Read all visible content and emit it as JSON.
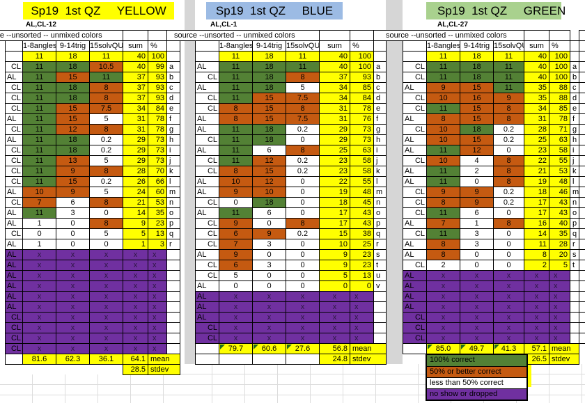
{
  "source_header": "source --unsorted -- unmixed colors",
  "columns": [
    "1-8angles",
    "9-14trig",
    "15solvQU",
    "sum",
    "%"
  ],
  "max_row": [
    "11",
    "18",
    "11",
    "40",
    "100"
  ],
  "labels": {
    "mean": "mean",
    "stdev": "stdev",
    "x": "x"
  },
  "colors": {
    "correct_green": "#538135",
    "partial_orange": "#C55A11",
    "none_white": "#FFFFFF",
    "noshow_purple": "#7030A0",
    "score_yellow": "#FFFF00",
    "title_yellow": "#FFFF00",
    "title_blue": "#9CBBE4",
    "title_green": "#A9D18E"
  },
  "blocks": [
    {
      "title": "Sp19  1st QZ     YELLOW",
      "sub": "AL,CL-12",
      "title_bg": "#FFFF00",
      "rows": [
        {
          "label": "CL",
          "s": [
            "11",
            "18",
            "10.5"
          ],
          "c": [
            "g",
            "g",
            "o"
          ],
          "sum": "40",
          "pct": "99",
          "letter": "a"
        },
        {
          "label": "AL",
          "s": [
            "11",
            "15",
            "11"
          ],
          "c": [
            "g",
            "o",
            "g"
          ],
          "sum": "37",
          "pct": "93",
          "letter": "b"
        },
        {
          "label": "CL",
          "s": [
            "11",
            "18",
            "8"
          ],
          "c": [
            "g",
            "g",
            "o"
          ],
          "sum": "37",
          "pct": "93",
          "letter": "c"
        },
        {
          "label": "CL",
          "s": [
            "11",
            "18",
            "8"
          ],
          "c": [
            "g",
            "g",
            "o"
          ],
          "sum": "37",
          "pct": "93",
          "letter": "d"
        },
        {
          "label": "CL",
          "s": [
            "11",
            "15",
            "7.5"
          ],
          "c": [
            "g",
            "o",
            "o"
          ],
          "sum": "34",
          "pct": "84",
          "letter": "e"
        },
        {
          "label": "AL",
          "s": [
            "11",
            "15",
            "5"
          ],
          "c": [
            "g",
            "o",
            "w"
          ],
          "sum": "31",
          "pct": "78",
          "letter": "f"
        },
        {
          "label": "CL",
          "s": [
            "11",
            "12",
            "8"
          ],
          "c": [
            "g",
            "o",
            "o"
          ],
          "sum": "31",
          "pct": "78",
          "letter": "g"
        },
        {
          "label": "AL",
          "s": [
            "11",
            "18",
            "0.2"
          ],
          "c": [
            "g",
            "g",
            "w"
          ],
          "sum": "29",
          "pct": "73",
          "letter": "h"
        },
        {
          "label": "CL",
          "s": [
            "11",
            "18",
            "0.2"
          ],
          "c": [
            "g",
            "g",
            "w"
          ],
          "sum": "29",
          "pct": "73",
          "letter": "i"
        },
        {
          "label": "CL",
          "s": [
            "11",
            "13",
            "5"
          ],
          "c": [
            "g",
            "o",
            "w"
          ],
          "sum": "29",
          "pct": "73",
          "letter": "j"
        },
        {
          "label": "CL",
          "s": [
            "11",
            "9",
            "8"
          ],
          "c": [
            "g",
            "o",
            "o"
          ],
          "sum": "28",
          "pct": "70",
          "letter": "k"
        },
        {
          "label": "CL",
          "s": [
            "11",
            "15",
            "0.2"
          ],
          "c": [
            "g",
            "o",
            "w"
          ],
          "sum": "26",
          "pct": "66",
          "letter": "l"
        },
        {
          "label": "AL",
          "s": [
            "10",
            "9",
            "5"
          ],
          "c": [
            "o",
            "o",
            "w"
          ],
          "sum": "24",
          "pct": "60",
          "letter": "m"
        },
        {
          "label": "CL",
          "s": [
            "7",
            "6",
            "8"
          ],
          "c": [
            "o",
            "w",
            "o"
          ],
          "sum": "21",
          "pct": "53",
          "letter": "n"
        },
        {
          "label": "AL",
          "s": [
            "11",
            "3",
            "0"
          ],
          "c": [
            "g",
            "w",
            "w"
          ],
          "sum": "14",
          "pct": "35",
          "letter": "o"
        },
        {
          "label": "AL",
          "s": [
            "1",
            "0",
            "8"
          ],
          "c": [
            "w",
            "w",
            "o"
          ],
          "sum": "9",
          "pct": "23",
          "letter": "p"
        },
        {
          "label": "CL",
          "s": [
            "0",
            "0",
            "5"
          ],
          "c": [
            "w",
            "w",
            "w"
          ],
          "sum": "5",
          "pct": "13",
          "letter": "q"
        },
        {
          "label": "AL",
          "s": [
            "1",
            "0",
            "0"
          ],
          "c": [
            "w",
            "w",
            "w"
          ],
          "sum": "1",
          "pct": "3",
          "letter": "r"
        }
      ],
      "noshow_rows": [
        "AL",
        "AL",
        "AL",
        "AL",
        "AL",
        "AL",
        "CL",
        "CL",
        "CL",
        "CL"
      ],
      "mean": [
        "81.6",
        "62.3",
        "36.1",
        "64.1"
      ],
      "stdev": "28.5",
      "mean_flags": false
    },
    {
      "title": "Sp19  1st QZ     BLUE",
      "sub": "AL,CL-1",
      "title_bg": "#9CBBE4",
      "rows": [
        {
          "label": "AL",
          "s": [
            "11",
            "18",
            "11"
          ],
          "c": [
            "g",
            "g",
            "g"
          ],
          "sum": "40",
          "pct": "100",
          "letter": "a"
        },
        {
          "label": "CL",
          "s": [
            "11",
            "18",
            "8"
          ],
          "c": [
            "g",
            "g",
            "o"
          ],
          "sum": "37",
          "pct": "93",
          "letter": "b"
        },
        {
          "label": "AL",
          "s": [
            "11",
            "18",
            "5"
          ],
          "c": [
            "g",
            "g",
            "w"
          ],
          "sum": "34",
          "pct": "85",
          "letter": "c"
        },
        {
          "label": "CL",
          "s": [
            "11",
            "15",
            "7.5"
          ],
          "c": [
            "g",
            "o",
            "o"
          ],
          "sum": "34",
          "pct": "84",
          "letter": "d"
        },
        {
          "label": "CL",
          "s": [
            "8",
            "15",
            "8"
          ],
          "c": [
            "o",
            "o",
            "o"
          ],
          "sum": "31",
          "pct": "78",
          "letter": "e"
        },
        {
          "label": "AL",
          "s": [
            "8",
            "15",
            "7.5"
          ],
          "c": [
            "o",
            "o",
            "o"
          ],
          "sum": "31",
          "pct": "76",
          "letter": "f"
        },
        {
          "label": "AL",
          "s": [
            "11",
            "18",
            "0.2"
          ],
          "c": [
            "g",
            "g",
            "w"
          ],
          "sum": "29",
          "pct": "73",
          "letter": "g"
        },
        {
          "label": "CL",
          "s": [
            "11",
            "18",
            "0"
          ],
          "c": [
            "g",
            "g",
            "w"
          ],
          "sum": "29",
          "pct": "73",
          "letter": "h"
        },
        {
          "label": "AL",
          "s": [
            "11",
            "6",
            "8"
          ],
          "c": [
            "g",
            "w",
            "o"
          ],
          "sum": "25",
          "pct": "63",
          "letter": "i"
        },
        {
          "label": "CL",
          "s": [
            "11",
            "12",
            "0.2"
          ],
          "c": [
            "g",
            "o",
            "w"
          ],
          "sum": "23",
          "pct": "58",
          "letter": "j"
        },
        {
          "label": "CL",
          "s": [
            "8",
            "15",
            "0.2"
          ],
          "c": [
            "o",
            "o",
            "w"
          ],
          "sum": "23",
          "pct": "58",
          "letter": "k"
        },
        {
          "label": "AL",
          "s": [
            "10",
            "12",
            "0"
          ],
          "c": [
            "o",
            "o",
            "w"
          ],
          "sum": "22",
          "pct": "55",
          "letter": "l"
        },
        {
          "label": "AL",
          "s": [
            "9",
            "10",
            "0"
          ],
          "c": [
            "o",
            "o",
            "w"
          ],
          "sum": "19",
          "pct": "48",
          "letter": "m"
        },
        {
          "label": "CL",
          "s": [
            "0",
            "18",
            "0"
          ],
          "c": [
            "w",
            "g",
            "w"
          ],
          "sum": "18",
          "pct": "45",
          "letter": "n"
        },
        {
          "label": "AL",
          "s": [
            "11",
            "6",
            "0"
          ],
          "c": [
            "g",
            "w",
            "w"
          ],
          "sum": "17",
          "pct": "43",
          "letter": "o"
        },
        {
          "label": "CL",
          "s": [
            "9",
            "0",
            "8"
          ],
          "c": [
            "o",
            "w",
            "o"
          ],
          "sum": "17",
          "pct": "43",
          "letter": "p"
        },
        {
          "label": "CL",
          "s": [
            "6",
            "9",
            "0.2"
          ],
          "c": [
            "o",
            "o",
            "w"
          ],
          "sum": "15",
          "pct": "38",
          "letter": "q"
        },
        {
          "label": "CL",
          "s": [
            "7",
            "3",
            "0"
          ],
          "c": [
            "o",
            "w",
            "w"
          ],
          "sum": "10",
          "pct": "25",
          "letter": "r"
        },
        {
          "label": "AL",
          "s": [
            "9",
            "0",
            "0"
          ],
          "c": [
            "o",
            "w",
            "w"
          ],
          "sum": "9",
          "pct": "23",
          "letter": "s"
        },
        {
          "label": "CL",
          "s": [
            "6",
            "3",
            "0"
          ],
          "c": [
            "o",
            "w",
            "w"
          ],
          "sum": "9",
          "pct": "23",
          "letter": "t"
        },
        {
          "label": "CL",
          "s": [
            "5",
            "0",
            "0"
          ],
          "c": [
            "w",
            "w",
            "w"
          ],
          "sum": "5",
          "pct": "13",
          "letter": "u"
        },
        {
          "label": "AL",
          "s": [
            "0",
            "0",
            "0"
          ],
          "c": [
            "w",
            "w",
            "w"
          ],
          "sum": "0",
          "pct": "0",
          "letter": "v"
        }
      ],
      "noshow_rows": [
        "AL",
        "AL",
        "AL",
        "CL",
        "CL"
      ],
      "mean": [
        "79.7",
        "60.6",
        "27.6",
        "56.8"
      ],
      "stdev": "24.8",
      "mean_flags": true
    },
    {
      "title": "Sp19  1st QZ     GREEN",
      "sub": "AL,CL-27",
      "title_bg": "#A9D18E",
      "rows": [
        {
          "label": "CL",
          "s": [
            "11",
            "18",
            "11"
          ],
          "c": [
            "g",
            "g",
            "g"
          ],
          "sum": "40",
          "pct": "100",
          "letter": "a"
        },
        {
          "label": "CL",
          "s": [
            "11",
            "18",
            "11"
          ],
          "c": [
            "g",
            "g",
            "g"
          ],
          "sum": "40",
          "pct": "100",
          "letter": "b"
        },
        {
          "label": "AL",
          "s": [
            "9",
            "15",
            "11"
          ],
          "c": [
            "o",
            "o",
            "g"
          ],
          "sum": "35",
          "pct": "88",
          "letter": "c"
        },
        {
          "label": "CL",
          "s": [
            "10",
            "16",
            "9"
          ],
          "c": [
            "o",
            "o",
            "o"
          ],
          "sum": "35",
          "pct": "88",
          "letter": "d"
        },
        {
          "label": "CL",
          "s": [
            "11",
            "15",
            "8"
          ],
          "c": [
            "g",
            "o",
            "o"
          ],
          "sum": "34",
          "pct": "85",
          "letter": "e"
        },
        {
          "label": "AL",
          "s": [
            "8",
            "15",
            "8"
          ],
          "c": [
            "o",
            "o",
            "o"
          ],
          "sum": "31",
          "pct": "78",
          "letter": "f"
        },
        {
          "label": "CL",
          "s": [
            "10",
            "18",
            "0.2"
          ],
          "c": [
            "o",
            "g",
            "w"
          ],
          "sum": "28",
          "pct": "71",
          "letter": "g"
        },
        {
          "label": "AL",
          "s": [
            "10",
            "15",
            "0.2"
          ],
          "c": [
            "o",
            "o",
            "w"
          ],
          "sum": "25",
          "pct": "63",
          "letter": "h"
        },
        {
          "label": "AL",
          "s": [
            "11",
            "12",
            "0"
          ],
          "c": [
            "g",
            "o",
            "w"
          ],
          "sum": "23",
          "pct": "58",
          "letter": "i"
        },
        {
          "label": "CL",
          "s": [
            "10",
            "4",
            "8"
          ],
          "c": [
            "o",
            "w",
            "o"
          ],
          "sum": "22",
          "pct": "55",
          "letter": "j"
        },
        {
          "label": "AL",
          "s": [
            "11",
            "2",
            "8"
          ],
          "c": [
            "g",
            "w",
            "o"
          ],
          "sum": "21",
          "pct": "53",
          "letter": "k"
        },
        {
          "label": "AL",
          "s": [
            "11",
            "0",
            "8"
          ],
          "c": [
            "g",
            "w",
            "o"
          ],
          "sum": "19",
          "pct": "48",
          "letter": "l"
        },
        {
          "label": "CL",
          "s": [
            "9",
            "9",
            "0.2"
          ],
          "c": [
            "o",
            "o",
            "w"
          ],
          "sum": "18",
          "pct": "46",
          "letter": "m"
        },
        {
          "label": "CL",
          "s": [
            "8",
            "9",
            "0.2"
          ],
          "c": [
            "o",
            "o",
            "w"
          ],
          "sum": "17",
          "pct": "43",
          "letter": "n"
        },
        {
          "label": "CL",
          "s": [
            "11",
            "6",
            "0"
          ],
          "c": [
            "g",
            "w",
            "w"
          ],
          "sum": "17",
          "pct": "43",
          "letter": "o"
        },
        {
          "label": "AL",
          "s": [
            "7",
            "1",
            "8"
          ],
          "c": [
            "o",
            "w",
            "o"
          ],
          "sum": "16",
          "pct": "40",
          "letter": "p"
        },
        {
          "label": "CL",
          "s": [
            "11",
            "3",
            "0"
          ],
          "c": [
            "g",
            "w",
            "w"
          ],
          "sum": "14",
          "pct": "35",
          "letter": "q"
        },
        {
          "label": "AL",
          "s": [
            "8",
            "3",
            "0"
          ],
          "c": [
            "o",
            "w",
            "w"
          ],
          "sum": "11",
          "pct": "28",
          "letter": "r"
        },
        {
          "label": "AL",
          "s": [
            "8",
            "0",
            "0"
          ],
          "c": [
            "o",
            "w",
            "w"
          ],
          "sum": "8",
          "pct": "20",
          "letter": "s"
        },
        {
          "label": "CL",
          "s": [
            "2",
            "0",
            "0"
          ],
          "c": [
            "w",
            "w",
            "w"
          ],
          "sum": "2",
          "pct": "5",
          "letter": "t"
        }
      ],
      "noshow_rows": [
        "AL",
        "AL",
        "AL",
        "AL",
        "CL",
        "CL",
        "CL"
      ],
      "mean": [
        "85.0",
        "49.7",
        "41.3",
        "57.1"
      ],
      "stdev": "26.5",
      "mean_flags": true
    }
  ],
  "legend": {
    "items": [
      {
        "label": "100% correct",
        "color": "#538135"
      },
      {
        "label": "50% or better correct",
        "color": "#C55A11"
      },
      {
        "label": "less than 50% correct",
        "color": "#FFFFFF"
      },
      {
        "label": "no show or dropped",
        "color": "#7030A0"
      }
    ]
  }
}
